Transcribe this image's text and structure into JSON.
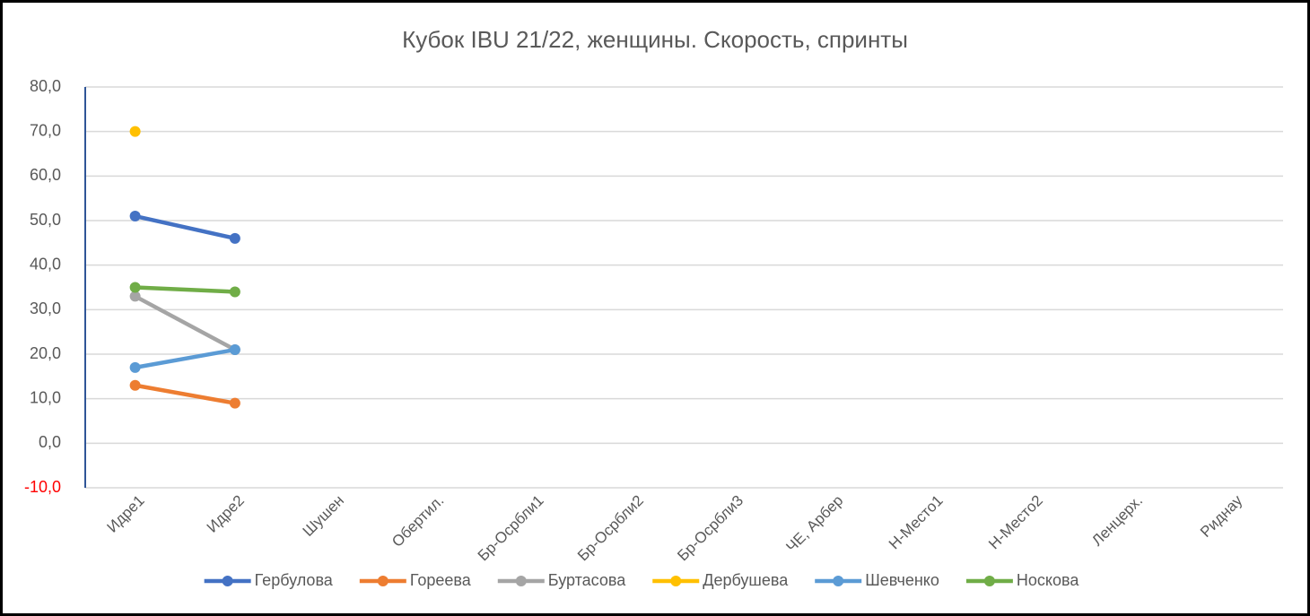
{
  "chart_data": {
    "type": "line",
    "title": "Кубок IBU 21/22, женщины. Скорость, спринты",
    "categories": [
      "Идре1",
      "Идре2",
      "Шушен",
      "Обертил.",
      "Бр-Осрбли1",
      "Бр-Осрбли2",
      "Бр-Осрбли3",
      "ЧЕ, Арбер",
      "Н-Место1",
      "Н-Место2",
      "Ленцерх.",
      "Риднау"
    ],
    "series": [
      {
        "name": "Гербулова",
        "color": "#4472c4",
        "values": [
          51,
          46,
          null,
          null,
          null,
          null,
          null,
          null,
          null,
          null,
          null,
          null
        ]
      },
      {
        "name": "Гореева",
        "color": "#ed7d31",
        "values": [
          13,
          9,
          null,
          null,
          null,
          null,
          null,
          null,
          null,
          null,
          null,
          null
        ]
      },
      {
        "name": "Буртасова",
        "color": "#a5a5a5",
        "values": [
          33,
          21,
          null,
          null,
          null,
          null,
          null,
          null,
          null,
          null,
          null,
          null
        ]
      },
      {
        "name": "Дербушева",
        "color": "#ffc000",
        "values": [
          70,
          null,
          null,
          null,
          null,
          null,
          null,
          null,
          null,
          null,
          null,
          null
        ]
      },
      {
        "name": "Шевченко",
        "color": "#5b9bd5",
        "values": [
          17,
          21,
          null,
          null,
          null,
          null,
          null,
          null,
          null,
          null,
          null,
          null
        ]
      },
      {
        "name": "Носкова",
        "color": "#70ad47",
        "values": [
          35,
          34,
          null,
          null,
          null,
          null,
          null,
          null,
          null,
          null,
          null,
          null
        ]
      }
    ],
    "ylim": [
      -10,
      80
    ],
    "yticks": [
      {
        "value": -10,
        "label": "-10,0",
        "color": "#ff0000"
      },
      {
        "value": 0,
        "label": "0,0"
      },
      {
        "value": 10,
        "label": "10,0"
      },
      {
        "value": 20,
        "label": "20,0"
      },
      {
        "value": 30,
        "label": "30,0"
      },
      {
        "value": 40,
        "label": "40,0"
      },
      {
        "value": 50,
        "label": "50,0"
      },
      {
        "value": 60,
        "label": "60,0"
      },
      {
        "value": 70,
        "label": "70,0"
      },
      {
        "value": 80,
        "label": "80,0"
      }
    ],
    "grid": true,
    "legend": "bottom"
  }
}
